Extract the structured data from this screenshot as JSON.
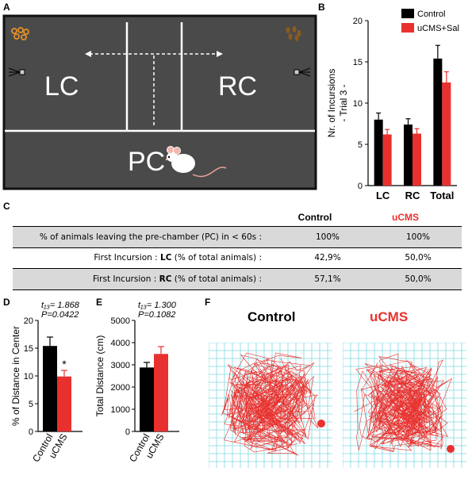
{
  "panels": {
    "a": "A",
    "b": "B",
    "c": "C",
    "d": "D",
    "e": "E",
    "f": "F"
  },
  "arena": {
    "left_chamber": "LC",
    "right_chamber": "RC",
    "pre_chamber": "PC",
    "colors": {
      "background": "#4a4a4a",
      "walls": "#ffffff",
      "left_reward": "#d98a2b",
      "right_reward": "#8b5a1e"
    }
  },
  "table": {
    "headers": {
      "control": "Control",
      "ucms": "uCMS"
    },
    "rows": [
      {
        "label_prefix": "% of animals leaving the pre-chamber (PC) in < 60s :",
        "bold_term": "",
        "label_suffix": "",
        "control": "100%",
        "ucms": "100%",
        "shaded": true
      },
      {
        "label_prefix": "First Incursion : ",
        "bold_term": "LC",
        "label_suffix": " (% of total animals) :",
        "control": "42,9%",
        "ucms": "50,0%",
        "shaded": false
      },
      {
        "label_prefix": "First Incursion : ",
        "bold_term": "RC",
        "label_suffix": " (% of total animals) :",
        "control": "57,1%",
        "ucms": "50,0%",
        "shaded": true
      }
    ],
    "colors": {
      "ucms_header": "#e8312e",
      "row_shade": "#d9d9d9"
    }
  },
  "chart_data": [
    {
      "type": "bar",
      "panel": "B",
      "categories": [
        "LC",
        "RC",
        "Total"
      ],
      "series": [
        {
          "name": "Control",
          "values": [
            8.0,
            7.4,
            15.4
          ],
          "errors": [
            0.8,
            0.7,
            1.6
          ],
          "color": "#000000"
        },
        {
          "name": "uCMS+Sal",
          "values": [
            6.2,
            6.3,
            12.5
          ],
          "errors": [
            0.6,
            0.6,
            1.3
          ],
          "color": "#e8312e"
        }
      ],
      "ylabel_lines": [
        "Nr. of Incursions",
        "- Trial 3 -"
      ],
      "ylim": [
        0,
        20
      ],
      "yticks": [
        0,
        5,
        10,
        15,
        20
      ],
      "legend_position": "top-right"
    },
    {
      "type": "bar",
      "panel": "D",
      "categories": [
        "Control",
        "uCMS"
      ],
      "values": [
        15.4,
        9.9
      ],
      "errors": [
        1.6,
        1.1
      ],
      "colors": [
        "#000000",
        "#e8312e"
      ],
      "ylabel": "% of Distance in Center",
      "ylim": [
        0,
        20
      ],
      "yticks": [
        0,
        5,
        10,
        15,
        20
      ],
      "stat_t": "t₁₃= 1.868",
      "stat_p": "P=0.0422",
      "significance": "*"
    },
    {
      "type": "bar",
      "panel": "E",
      "categories": [
        "Control",
        "uCMS"
      ],
      "values": [
        2880,
        3490
      ],
      "errors": [
        230,
        330
      ],
      "colors": [
        "#000000",
        "#e8312e"
      ],
      "ylabel": "Total Distance (cm)",
      "ylim": [
        0,
        5000
      ],
      "yticks": [
        0,
        1000,
        2000,
        3000,
        4000,
        5000
      ],
      "stat_t": "t₁₃= 1.300",
      "stat_p": "P=0.1082"
    }
  ],
  "tracks": {
    "control_title": "Control",
    "ucms_title": "uCMS",
    "colors": {
      "grid": "#7fd8e0",
      "path": "#e8312e",
      "title_ucms": "#e8312e"
    }
  }
}
